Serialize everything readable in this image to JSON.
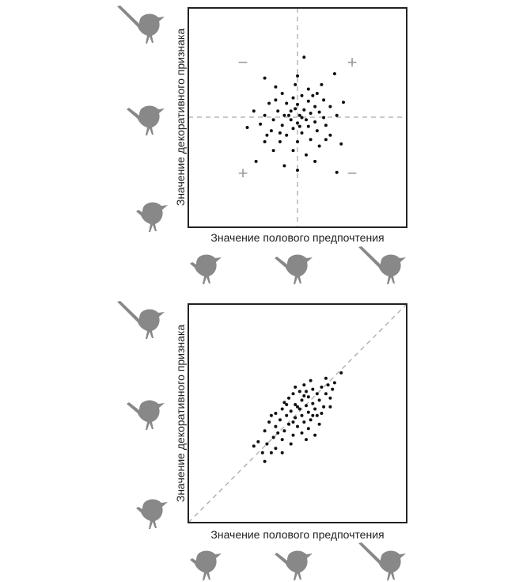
{
  "colors": {
    "frame": "#222222",
    "point": "#111111",
    "guide": "#aaaaaa",
    "bird": "#888888",
    "sign": "#9a9a9a"
  },
  "chart_data": [
    {
      "type": "scatter",
      "xlabel": "Значение полового предпочтения",
      "ylabel": "Значение декоративного признака",
      "xlim": [
        -1,
        1
      ],
      "ylim": [
        -1,
        1
      ],
      "reference": "crosshair",
      "quadrant_signs": [
        {
          "quadrant": "top-left",
          "text": "−"
        },
        {
          "quadrant": "top-right",
          "text": "+"
        },
        {
          "quadrant": "bottom-left",
          "text": "+"
        },
        {
          "quadrant": "bottom-right",
          "text": "−"
        }
      ],
      "icons": {
        "y_axis": [
          "bird-long-tail-icon",
          "bird-medium-tail-icon",
          "bird-short-tail-icon"
        ],
        "x_axis": [
          "bird-short-tail-icon",
          "bird-medium-tail-icon",
          "bird-long-tail-icon"
        ]
      },
      "points": [
        [
          0.06,
          0.55
        ],
        [
          0.0,
          0.38
        ],
        [
          -0.3,
          0.36
        ],
        [
          0.34,
          0.4
        ],
        [
          -0.2,
          0.28
        ],
        [
          0.1,
          0.26
        ],
        [
          -0.14,
          0.22
        ],
        [
          0.18,
          0.22
        ],
        [
          0.04,
          0.2
        ],
        [
          -0.04,
          0.18
        ],
        [
          0.24,
          0.16
        ],
        [
          -0.26,
          0.13
        ],
        [
          0.1,
          0.15
        ],
        [
          -0.1,
          0.13
        ],
        [
          0.0,
          0.12
        ],
        [
          0.3,
          0.1
        ],
        [
          0.16,
          0.1
        ],
        [
          -0.4,
          0.06
        ],
        [
          -0.18,
          0.06
        ],
        [
          0.06,
          0.07
        ],
        [
          -0.06,
          0.06
        ],
        [
          0.2,
          0.05
        ],
        [
          0.42,
          0.14
        ],
        [
          0.12,
          0.04
        ],
        [
          -0.3,
          0.02
        ],
        [
          -0.12,
          0.02
        ],
        [
          0.02,
          0.02
        ],
        [
          0.24,
          0.0
        ],
        [
          0.36,
          0.02
        ],
        [
          -0.22,
          -0.02
        ],
        [
          -0.06,
          -0.02
        ],
        [
          0.08,
          -0.02
        ],
        [
          0.16,
          -0.04
        ],
        [
          -0.34,
          -0.06
        ],
        [
          0.0,
          -0.05
        ],
        [
          -0.14,
          -0.07
        ],
        [
          0.26,
          -0.07
        ],
        [
          0.1,
          -0.08
        ],
        [
          -0.04,
          -0.1
        ],
        [
          0.18,
          -0.12
        ],
        [
          -0.46,
          -0.09
        ],
        [
          -0.24,
          -0.12
        ],
        [
          0.04,
          -0.14
        ],
        [
          -0.1,
          -0.16
        ],
        [
          0.3,
          -0.16
        ],
        [
          0.12,
          -0.2
        ],
        [
          -0.3,
          -0.22
        ],
        [
          -0.16,
          -0.22
        ],
        [
          0.0,
          -0.22
        ],
        [
          0.2,
          -0.26
        ],
        [
          -0.04,
          -0.3
        ],
        [
          0.4,
          -0.24
        ],
        [
          -0.22,
          -0.3
        ],
        [
          0.08,
          -0.34
        ],
        [
          -0.38,
          -0.4
        ],
        [
          0.16,
          -0.4
        ],
        [
          -0.12,
          -0.44
        ],
        [
          0.0,
          -0.48
        ],
        [
          0.36,
          -0.5
        ],
        [
          -0.02,
          0.08
        ],
        [
          0.04,
          0.0
        ],
        [
          -0.08,
          0.02
        ],
        [
          0.14,
          0.2
        ],
        [
          -0.2,
          0.16
        ],
        [
          0.02,
          -0.08
        ],
        [
          -0.16,
          -0.14
        ],
        [
          0.22,
          0.3
        ],
        [
          -0.02,
          0.3
        ],
        [
          0.26,
          -0.2
        ],
        [
          -0.28,
          -0.16
        ]
      ]
    },
    {
      "type": "scatter",
      "xlabel": "Значение полового предпочтения",
      "ylabel": "Значение декоративного признака",
      "xlim": [
        -1,
        1
      ],
      "ylim": [
        -1,
        1
      ],
      "reference": "diagonal",
      "icons": {
        "y_axis": [
          "bird-long-tail-icon",
          "bird-medium-tail-icon",
          "bird-short-tail-icon"
        ],
        "x_axis": [
          "bird-short-tail-icon",
          "bird-medium-tail-icon",
          "bird-long-tail-icon"
        ]
      },
      "points": [
        [
          0.4,
          0.37
        ],
        [
          0.34,
          0.28
        ],
        [
          0.32,
          0.22
        ],
        [
          0.28,
          0.26
        ],
        [
          0.22,
          0.24
        ],
        [
          0.14,
          0.22
        ],
        [
          0.08,
          0.2
        ],
        [
          0.02,
          0.2
        ],
        [
          0.18,
          0.18
        ],
        [
          0.26,
          0.18
        ],
        [
          -0.04,
          0.18
        ],
        [
          0.1,
          0.15
        ],
        [
          -0.08,
          0.14
        ],
        [
          0.04,
          0.12
        ],
        [
          0.2,
          0.12
        ],
        [
          0.3,
          0.14
        ],
        [
          -0.12,
          0.1
        ],
        [
          0.14,
          0.09
        ],
        [
          -0.02,
          0.08
        ],
        [
          0.08,
          0.07
        ],
        [
          0.24,
          0.06
        ],
        [
          -0.14,
          0.04
        ],
        [
          0.02,
          0.04
        ],
        [
          0.16,
          0.04
        ],
        [
          -0.06,
          0.02
        ],
        [
          0.1,
          0.01
        ],
        [
          -0.2,
          0.0
        ],
        [
          0.04,
          -0.02
        ],
        [
          -0.1,
          -0.02
        ],
        [
          0.18,
          -0.02
        ],
        [
          -0.02,
          -0.04
        ],
        [
          0.12,
          -0.06
        ],
        [
          -0.16,
          -0.06
        ],
        [
          -0.26,
          -0.08
        ],
        [
          0.06,
          -0.08
        ],
        [
          -0.08,
          -0.1
        ],
        [
          0.2,
          -0.1
        ],
        [
          0.0,
          -0.12
        ],
        [
          -0.2,
          -0.12
        ],
        [
          0.1,
          -0.14
        ],
        [
          -0.12,
          -0.16
        ],
        [
          -0.3,
          -0.16
        ],
        [
          0.04,
          -0.18
        ],
        [
          -0.04,
          -0.2
        ],
        [
          -0.22,
          -0.22
        ],
        [
          0.16,
          -0.2
        ],
        [
          -0.14,
          -0.24
        ],
        [
          -0.36,
          -0.26
        ],
        [
          -0.28,
          -0.28
        ],
        [
          -0.06,
          -0.28
        ],
        [
          -0.2,
          -0.32
        ],
        [
          -0.4,
          -0.3
        ],
        [
          -0.32,
          -0.36
        ],
        [
          -0.14,
          -0.36
        ],
        [
          -0.3,
          -0.44
        ],
        [
          0.06,
          0.26
        ],
        [
          0.12,
          0.3
        ],
        [
          0.0,
          0.06
        ],
        [
          -0.04,
          -0.08
        ],
        [
          0.22,
          0.0
        ],
        [
          -0.24,
          -0.02
        ],
        [
          0.06,
          0.16
        ],
        [
          -0.1,
          0.08
        ],
        [
          0.14,
          -0.02
        ],
        [
          0.26,
          0.32
        ],
        [
          -0.18,
          -0.18
        ],
        [
          0.08,
          -0.24
        ],
        [
          -0.24,
          -0.36
        ],
        [
          0.3,
          0.06
        ],
        [
          -0.02,
          0.24
        ]
      ]
    }
  ]
}
